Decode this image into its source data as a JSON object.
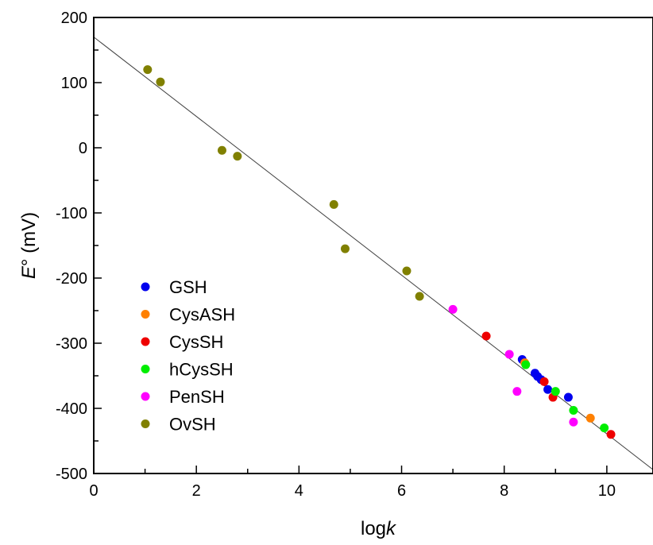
{
  "chart_data": {
    "type": "scatter",
    "xlabel": {
      "prefix": "log",
      "italic": "k"
    },
    "ylabel": {
      "italic": "E",
      "suffix": "° (mV)"
    },
    "xlim": [
      0,
      10.9
    ],
    "ylim": [
      -500,
      200
    ],
    "xticks": [
      0,
      2,
      4,
      6,
      8,
      10
    ],
    "yticks": [
      200,
      100,
      0,
      -100,
      -200,
      -300,
      -400,
      -500
    ],
    "grid": false,
    "legend_position": "lower-left",
    "fit_line": {
      "x": [
        0,
        10.9
      ],
      "y": [
        170,
        -494
      ],
      "color": "#404040"
    },
    "series": [
      {
        "name": "GSH",
        "color": "#0000ee",
        "points": [
          [
            8.35,
            -325
          ],
          [
            8.6,
            -346
          ],
          [
            8.65,
            -351
          ],
          [
            8.72,
            -356
          ],
          [
            8.85,
            -371
          ],
          [
            9.25,
            -383
          ]
        ]
      },
      {
        "name": "CysASH",
        "color": "#ff8000",
        "points": [
          [
            8.4,
            -330
          ],
          [
            9.68,
            -415
          ]
        ]
      },
      {
        "name": "CysSH",
        "color": "#ee0000",
        "points": [
          [
            7.65,
            -289
          ],
          [
            8.78,
            -359
          ],
          [
            8.95,
            -383
          ],
          [
            10.08,
            -440
          ]
        ]
      },
      {
        "name": "hCysSH",
        "color": "#00ee00",
        "points": [
          [
            8.42,
            -333
          ],
          [
            9.0,
            -374
          ],
          [
            9.35,
            -403
          ],
          [
            9.95,
            -430
          ]
        ]
      },
      {
        "name": "PenSH",
        "color": "#ff00ff",
        "points": [
          [
            7.0,
            -248
          ],
          [
            8.1,
            -317
          ],
          [
            8.25,
            -374
          ],
          [
            9.35,
            -421
          ]
        ]
      },
      {
        "name": "OvSH",
        "color": "#808000",
        "points": [
          [
            1.05,
            120
          ],
          [
            1.3,
            101
          ],
          [
            2.5,
            -4
          ],
          [
            2.8,
            -13
          ],
          [
            4.68,
            -87
          ],
          [
            4.9,
            -155
          ],
          [
            6.1,
            -189
          ],
          [
            6.35,
            -228
          ]
        ]
      }
    ]
  }
}
